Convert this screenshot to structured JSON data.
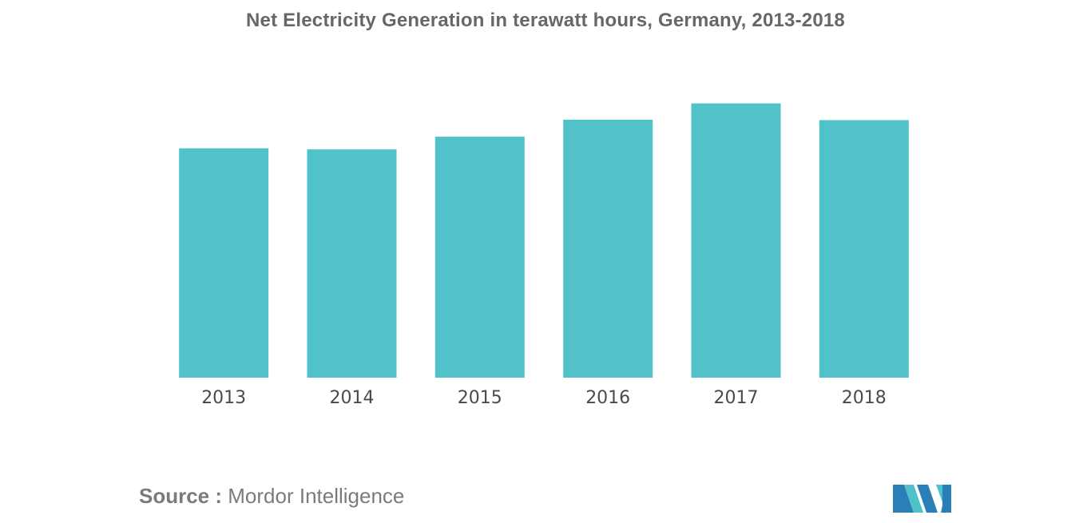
{
  "source": {
    "label": "Source :",
    "value": "Mordor Intelligence"
  },
  "logo": {
    "icon": "mordor-intelligence-logo-icon",
    "colors": [
      "#2a7fb8",
      "#4fc2c9"
    ]
  },
  "chart_data": {
    "type": "bar",
    "title": "Net Electricity Generation in terawatt hours, Germany, 2013-2018",
    "xlabel": "",
    "ylabel": "",
    "categories": [
      "2013",
      "2014",
      "2015",
      "2016",
      "2017",
      "2018"
    ],
    "values": [
      578,
      575,
      607,
      650,
      691,
      649
    ],
    "ylim": [
      0,
      700
    ],
    "bar_color": "#51c2ca",
    "grid": false,
    "legend": "none"
  }
}
